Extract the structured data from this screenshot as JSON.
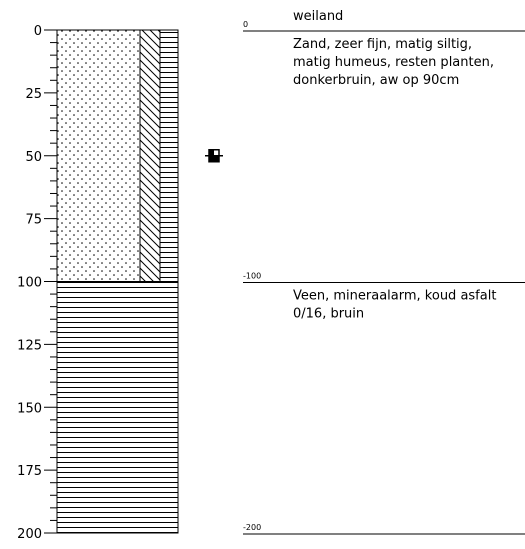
{
  "depth_axis": {
    "ylim": [
      0,
      200
    ],
    "ticks": [
      0,
      25,
      50,
      75,
      100,
      125,
      150,
      175,
      200
    ],
    "minor_ticks": [
      5,
      10,
      15,
      20,
      30,
      35,
      40,
      45,
      55,
      60,
      65,
      70,
      80,
      85,
      90,
      95,
      105,
      110,
      115,
      120,
      130,
      135,
      140,
      145,
      155,
      160,
      165,
      170,
      180,
      185,
      190,
      195
    ]
  },
  "surface": "weiland",
  "groundwater_depth": 50,
  "levels": [
    {
      "value": 0,
      "label": "0"
    },
    {
      "value": -100,
      "label": "-100"
    },
    {
      "value": -200,
      "label": "-200"
    }
  ],
  "layers": [
    {
      "top": 0,
      "bottom": 100,
      "description": [
        "Zand, zeer fijn, matig siltig,",
        "matig humeus, resten planten,",
        "donkerbruin, aw op 90cm"
      ]
    },
    {
      "top": 100,
      "bottom": 200,
      "description": [
        "Veen, mineraalarm, koud asfalt",
        "0/16, bruin"
      ]
    }
  ]
}
